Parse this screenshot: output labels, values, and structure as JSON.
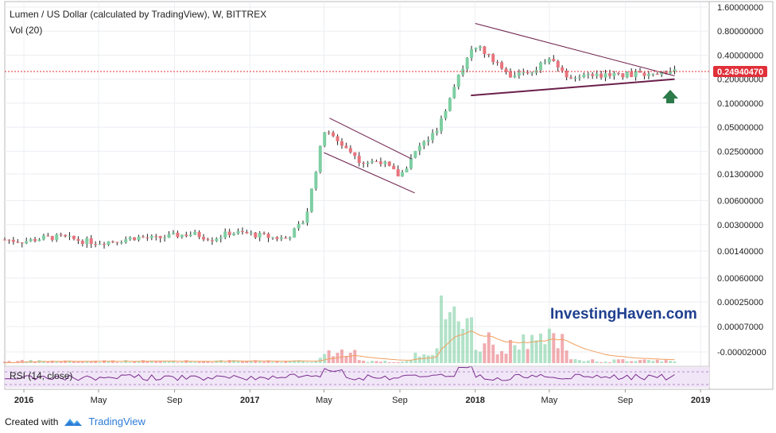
{
  "header": {
    "title": "Lumen / US Dollar (calculated by TradingView), W, BITTREX",
    "volume_label": "Vol (20)"
  },
  "watermark": "InvestingHaven.com",
  "rsi_label": "RSI (14, close)",
  "footer": {
    "created_with": "Created with",
    "brand": "TradingView"
  },
  "price_axis": {
    "ticks": [
      "1.60000000",
      "0.80000000",
      "0.40000000",
      "0.20000000",
      "0.10000000",
      "0.05000000",
      "0.02500000",
      "0.01300000",
      "0.00600000",
      "0.00300000",
      "0.00140000"
    ],
    "current_price_label": "0.24940470"
  },
  "volume_axis": {
    "ticks": [
      "0.00060000",
      "0.00025000",
      "0.00007000",
      "-0.00002000"
    ]
  },
  "time_axis": {
    "ticks": [
      "2016",
      "May",
      "Sep",
      "2017",
      "May",
      "Sep",
      "2018",
      "May",
      "Sep",
      "2019"
    ]
  },
  "colors": {
    "up": "#7ecfa3",
    "down": "#e8747c",
    "trendline": "#6b1f4a",
    "price_line": "#e0303a",
    "arrow": "#2d7a4a",
    "rsi_bg": "#f1e6f7",
    "rsi_line": "#7a2c8f",
    "volume_ma": "#f0a060"
  },
  "chart_data": {
    "type": "candlestick",
    "title": "Lumen / US Dollar (calculated by TradingView), W, BITTREX",
    "scale": "log",
    "ylim": [
      0.0011,
      1.8
    ],
    "x_range": [
      "2015-12-01",
      "2019-01-15"
    ],
    "current_price": 0.2494047,
    "points": [
      {
        "date": "2015-12-01",
        "close": 0.00195
      },
      {
        "date": "2016-01-01",
        "close": 0.00185
      },
      {
        "date": "2016-02-01",
        "close": 0.00205
      },
      {
        "date": "2016-03-01",
        "close": 0.0021
      },
      {
        "date": "2016-04-01",
        "close": 0.0019
      },
      {
        "date": "2016-05-01",
        "close": 0.0018
      },
      {
        "date": "2016-06-01",
        "close": 0.0019
      },
      {
        "date": "2016-07-01",
        "close": 0.0021
      },
      {
        "date": "2016-08-01",
        "close": 0.002
      },
      {
        "date": "2016-09-01",
        "close": 0.0022
      },
      {
        "date": "2016-10-01",
        "close": 0.0023
      },
      {
        "date": "2016-11-01",
        "close": 0.002
      },
      {
        "date": "2016-12-01",
        "close": 0.0024
      },
      {
        "date": "2017-01-01",
        "close": 0.0023
      },
      {
        "date": "2017-02-01",
        "close": 0.0021
      },
      {
        "date": "2017-03-01",
        "close": 0.002
      },
      {
        "date": "2017-04-01",
        "close": 0.0035
      },
      {
        "date": "2017-05-01",
        "close": 0.045
      },
      {
        "date": "2017-06-01",
        "close": 0.03
      },
      {
        "date": "2017-07-01",
        "close": 0.018
      },
      {
        "date": "2017-08-01",
        "close": 0.019
      },
      {
        "date": "2017-09-01",
        "close": 0.012
      },
      {
        "date": "2017-10-01",
        "close": 0.028
      },
      {
        "date": "2017-11-01",
        "close": 0.045
      },
      {
        "date": "2017-12-01",
        "close": 0.2
      },
      {
        "date": "2018-01-01",
        "close": 0.55
      },
      {
        "date": "2018-02-01",
        "close": 0.35
      },
      {
        "date": "2018-03-01",
        "close": 0.22
      },
      {
        "date": "2018-04-01",
        "close": 0.25
      },
      {
        "date": "2018-05-01",
        "close": 0.36
      },
      {
        "date": "2018-06-01",
        "close": 0.21
      },
      {
        "date": "2018-07-01",
        "close": 0.24
      },
      {
        "date": "2018-08-01",
        "close": 0.22
      },
      {
        "date": "2018-09-01",
        "close": 0.23
      },
      {
        "date": "2018-10-01",
        "close": 0.24
      },
      {
        "date": "2018-11-01",
        "close": 0.25
      }
    ],
    "annotations": [
      {
        "type": "descending-channel",
        "from": "2017-05",
        "to": "2017-09"
      },
      {
        "type": "symmetrical-triangle",
        "from": "2018-01",
        "to": "2018-11"
      },
      {
        "type": "up-arrow",
        "at": "2018-11"
      }
    ]
  }
}
